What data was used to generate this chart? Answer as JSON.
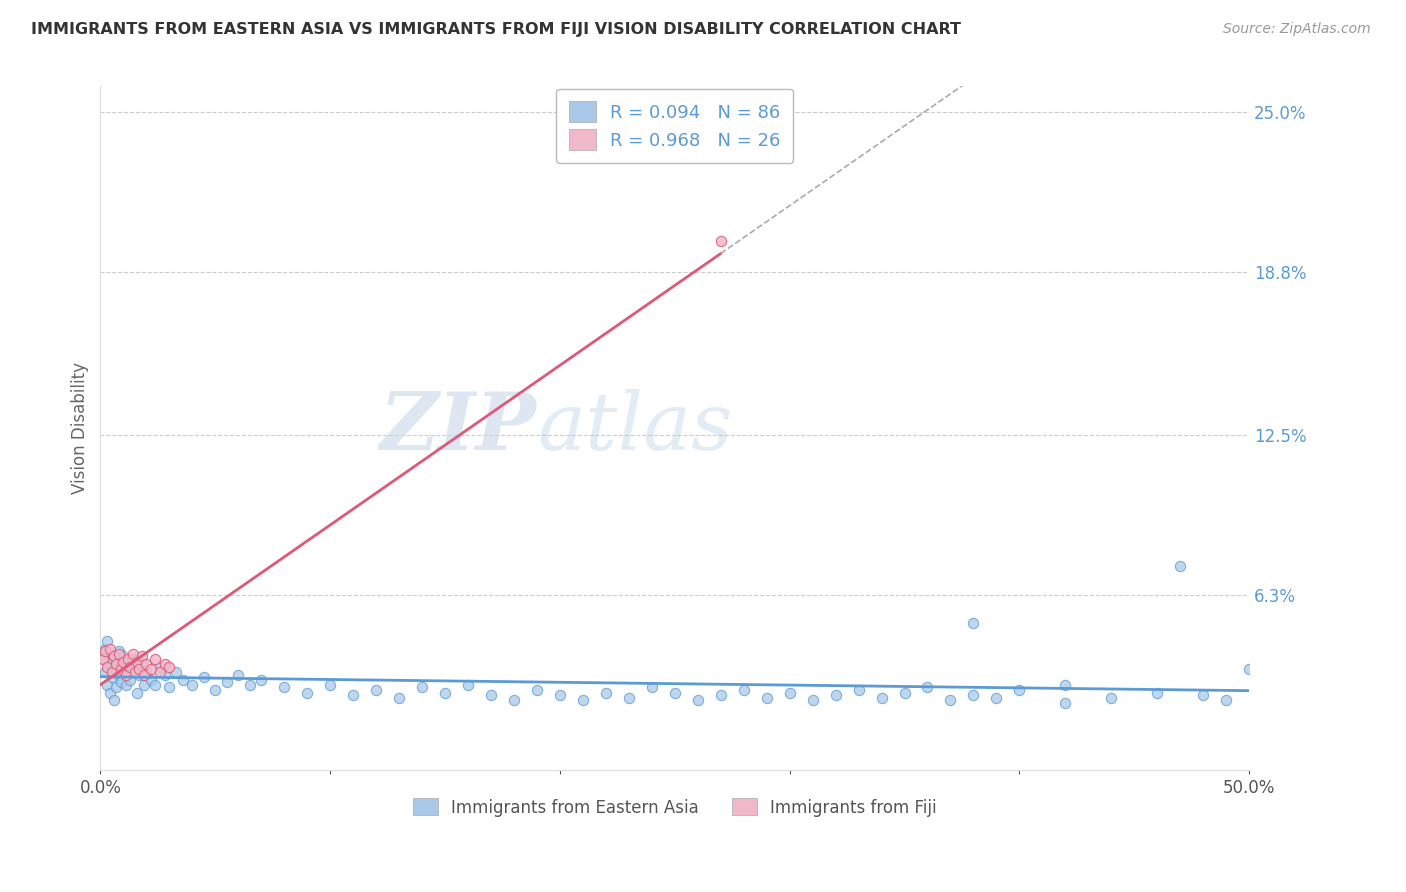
{
  "title": "IMMIGRANTS FROM EASTERN ASIA VS IMMIGRANTS FROM FIJI VISION DISABILITY CORRELATION CHART",
  "source": "Source: ZipAtlas.com",
  "ylabel": "Vision Disability",
  "legend_label_1": "Immigrants from Eastern Asia",
  "legend_label_2": "Immigrants from Fiji",
  "R1": 0.094,
  "N1": 86,
  "R2": 0.968,
  "N2": 26,
  "color1": "#aac9e8",
  "color2": "#f0b8c8",
  "line_color1": "#5b9bd5",
  "line_color2": "#e05878",
  "watermark_zip": "ZIP",
  "watermark_atlas": "atlas",
  "xlim": [
    0.0,
    0.5
  ],
  "ylim": [
    -0.005,
    0.26
  ],
  "ytick_vals": [
    0.063,
    0.125,
    0.188,
    0.25
  ],
  "ytick_labels": [
    "6.3%",
    "12.5%",
    "18.8%",
    "25.0%"
  ],
  "xtick_vals": [
    0.0,
    0.1,
    0.2,
    0.3,
    0.4,
    0.5
  ],
  "xtick_labels": [
    "0.0%",
    "",
    "",
    "",
    "",
    "50.0%"
  ],
  "eastern_asia_x": [
    0.001,
    0.002,
    0.002,
    0.003,
    0.003,
    0.004,
    0.004,
    0.005,
    0.005,
    0.006,
    0.006,
    0.007,
    0.007,
    0.008,
    0.008,
    0.009,
    0.009,
    0.01,
    0.01,
    0.011,
    0.011,
    0.012,
    0.013,
    0.014,
    0.015,
    0.016,
    0.017,
    0.018,
    0.019,
    0.02,
    0.022,
    0.024,
    0.026,
    0.028,
    0.03,
    0.033,
    0.036,
    0.04,
    0.045,
    0.05,
    0.055,
    0.06,
    0.065,
    0.07,
    0.08,
    0.09,
    0.1,
    0.11,
    0.12,
    0.13,
    0.14,
    0.15,
    0.16,
    0.17,
    0.18,
    0.19,
    0.2,
    0.21,
    0.22,
    0.23,
    0.24,
    0.25,
    0.26,
    0.27,
    0.28,
    0.29,
    0.3,
    0.31,
    0.32,
    0.33,
    0.34,
    0.35,
    0.36,
    0.37,
    0.38,
    0.39,
    0.4,
    0.42,
    0.44,
    0.46,
    0.47,
    0.48,
    0.49,
    0.5,
    0.38,
    0.42
  ],
  "eastern_asia_y": [
    0.038,
    0.042,
    0.033,
    0.028,
    0.045,
    0.036,
    0.025,
    0.031,
    0.04,
    0.035,
    0.022,
    0.038,
    0.027,
    0.032,
    0.041,
    0.029,
    0.036,
    0.034,
    0.039,
    0.028,
    0.033,
    0.037,
    0.03,
    0.035,
    0.038,
    0.025,
    0.032,
    0.036,
    0.028,
    0.033,
    0.03,
    0.028,
    0.035,
    0.032,
    0.027,
    0.033,
    0.03,
    0.028,
    0.031,
    0.026,
    0.029,
    0.032,
    0.028,
    0.03,
    0.027,
    0.025,
    0.028,
    0.024,
    0.026,
    0.023,
    0.027,
    0.025,
    0.028,
    0.024,
    0.022,
    0.026,
    0.024,
    0.022,
    0.025,
    0.023,
    0.027,
    0.025,
    0.022,
    0.024,
    0.026,
    0.023,
    0.025,
    0.022,
    0.024,
    0.026,
    0.023,
    0.025,
    0.027,
    0.022,
    0.024,
    0.023,
    0.026,
    0.028,
    0.023,
    0.025,
    0.074,
    0.024,
    0.022,
    0.034,
    0.052,
    0.021
  ],
  "fiji_x": [
    0.001,
    0.002,
    0.003,
    0.004,
    0.005,
    0.006,
    0.007,
    0.008,
    0.009,
    0.01,
    0.011,
    0.012,
    0.013,
    0.014,
    0.015,
    0.016,
    0.017,
    0.018,
    0.019,
    0.02,
    0.022,
    0.024,
    0.026,
    0.028,
    0.03,
    0.27
  ],
  "fiji_y": [
    0.038,
    0.041,
    0.035,
    0.042,
    0.033,
    0.039,
    0.036,
    0.04,
    0.034,
    0.037,
    0.032,
    0.038,
    0.035,
    0.04,
    0.033,
    0.037,
    0.034,
    0.039,
    0.032,
    0.036,
    0.034,
    0.038,
    0.033,
    0.036,
    0.035,
    0.2
  ]
}
